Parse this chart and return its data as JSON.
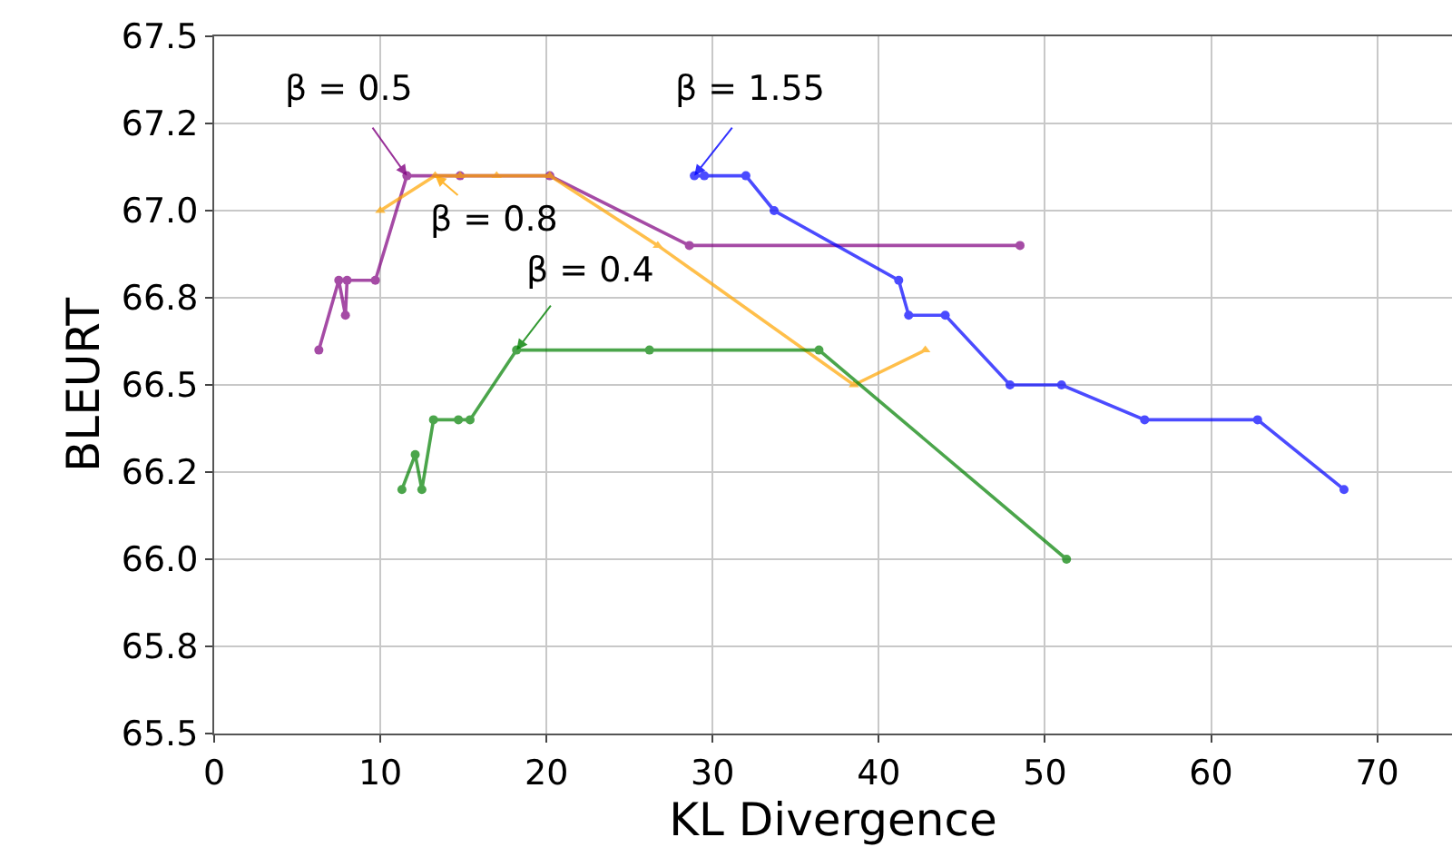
{
  "chart_data": {
    "type": "line",
    "xlabel": "KL Divergence",
    "ylabel": "BLEURT",
    "xlim": [
      0,
      74.5
    ],
    "xticks": [
      0,
      10,
      20,
      30,
      40,
      50,
      60,
      70
    ],
    "ylim": [
      65.5,
      67.5
    ],
    "yticks": [
      65.5,
      {
        "value": 65.75,
        "label": "65.8"
      },
      {
        "value": 66,
        "label": "66.0"
      },
      {
        "value": 66.25,
        "label": "66.2"
      },
      66.5,
      {
        "value": 66.75,
        "label": "66.8"
      },
      {
        "value": 67,
        "label": "67.0"
      },
      {
        "value": 67.25,
        "label": "67.2"
      },
      67.5
    ],
    "grid": true,
    "line_style": "solid",
    "series": [
      {
        "color": "#800080",
        "marker": "circle",
        "x": [
          6.3,
          7.5,
          7.9,
          8.0,
          9.7,
          11.6,
          14.8,
          20.2,
          28.6,
          48.5
        ],
        "values": [
          66.6,
          66.8,
          66.7,
          66.8,
          66.8,
          67.1,
          67.1,
          67.1,
          66.9,
          66.9
        ]
      },
      {
        "color": "#ffa500",
        "marker": "triangle",
        "x": [
          10.0,
          13.3,
          14.8,
          17.0,
          20.2,
          26.7,
          38.5,
          42.8
        ],
        "values": [
          67.0,
          67.1,
          67.1,
          67.1,
          67.1,
          66.9,
          66.5,
          66.6
        ]
      },
      {
        "color": "#008000",
        "marker": "circle",
        "x": [
          11.3,
          12.1,
          12.5,
          13.2,
          14.7,
          15.4,
          18.2,
          26.2,
          36.4,
          51.3
        ],
        "values": [
          66.2,
          66.3,
          66.2,
          66.4,
          66.4,
          66.4,
          66.6,
          66.6,
          66.6,
          66.0
        ]
      },
      {
        "color": "#0000ff",
        "marker": "circle",
        "x": [
          28.9,
          29.5,
          32.0,
          33.7,
          41.2,
          41.8,
          44.0,
          47.9,
          51.0,
          56.0,
          62.8,
          68.0
        ],
        "values": [
          67.1,
          67.1,
          67.1,
          67.0,
          66.8,
          66.7,
          66.7,
          66.5,
          66.5,
          66.4,
          66.4,
          66.2
        ]
      }
    ],
    "annotations": [
      {
        "text": "β = 0.5",
        "x": 11.6,
        "y": 67.1
      },
      {
        "text": "β = 0.8",
        "x": 13.3,
        "y": 67.1
      },
      {
        "text": "β = 0.4",
        "x": 18.2,
        "y": 66.6
      },
      {
        "text": "β = 1.55",
        "x": 28.9,
        "y": 67.1
      }
    ]
  }
}
